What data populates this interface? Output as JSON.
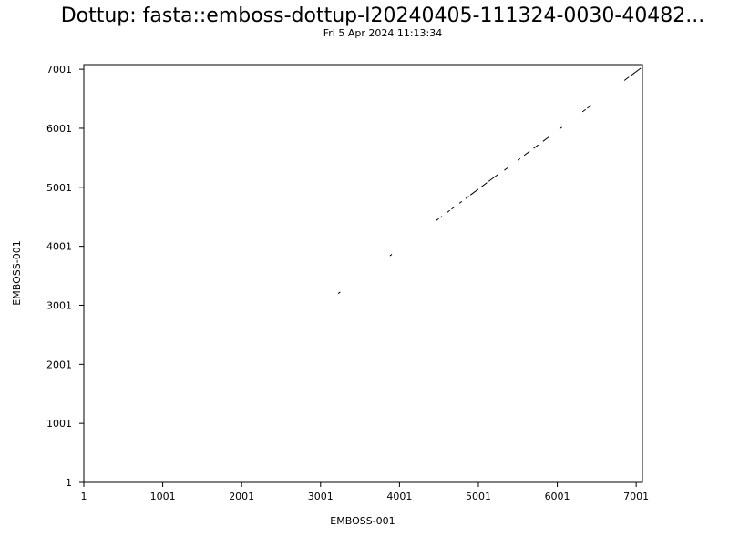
{
  "chart_data": {
    "type": "scatter",
    "title": "Dottup: fasta::emboss-dottup-I20240405-111324-0030-40482...",
    "subtitle": "Fri  5 Apr 2024 11:13:34",
    "xlabel": "EMBOSS-001",
    "ylabel": "EMBOSS-001",
    "xlim": [
      1,
      7080
    ],
    "ylim": [
      1,
      7080
    ],
    "xticks": [
      1,
      1001,
      2001,
      3001,
      4001,
      5001,
      6001,
      7001
    ],
    "yticks": [
      1,
      1001,
      2001,
      3001,
      4001,
      5001,
      6001,
      7001
    ],
    "grid": false,
    "segments": [
      {
        "x": [
          3225,
          3250
        ],
        "y": [
          3200,
          3225
        ]
      },
      {
        "x": [
          3880,
          3905
        ],
        "y": [
          3840,
          3865
        ]
      },
      {
        "x": [
          4460,
          4500
        ],
        "y": [
          4430,
          4470
        ]
      },
      {
        "x": [
          4520,
          4540
        ],
        "y": [
          4490,
          4510
        ]
      },
      {
        "x": [
          4600,
          4640
        ],
        "y": [
          4570,
          4610
        ]
      },
      {
        "x": [
          4660,
          4700
        ],
        "y": [
          4630,
          4670
        ]
      },
      {
        "x": [
          4760,
          4790
        ],
        "y": [
          4730,
          4760
        ]
      },
      {
        "x": [
          4840,
          4880
        ],
        "y": [
          4810,
          4850
        ]
      },
      {
        "x": [
          4900,
          5000
        ],
        "y": [
          4870,
          4970
        ]
      },
      {
        "x": [
          5040,
          5110
        ],
        "y": [
          5010,
          5080
        ]
      },
      {
        "x": [
          5130,
          5250
        ],
        "y": [
          5100,
          5220
        ]
      },
      {
        "x": [
          5330,
          5370
        ],
        "y": [
          5290,
          5330
        ]
      },
      {
        "x": [
          5500,
          5530
        ],
        "y": [
          5460,
          5490
        ]
      },
      {
        "x": [
          5580,
          5650
        ],
        "y": [
          5540,
          5610
        ]
      },
      {
        "x": [
          5700,
          5760
        ],
        "y": [
          5660,
          5720
        ]
      },
      {
        "x": [
          5820,
          5900
        ],
        "y": [
          5780,
          5860
        ]
      },
      {
        "x": [
          6030,
          6060
        ],
        "y": [
          5990,
          6020
        ]
      },
      {
        "x": [
          6320,
          6360
        ],
        "y": [
          6280,
          6320
        ]
      },
      {
        "x": [
          6380,
          6430
        ],
        "y": [
          6340,
          6390
        ]
      },
      {
        "x": [
          6850,
          6910
        ],
        "y": [
          6810,
          6870
        ]
      },
      {
        "x": [
          6930,
          7060
        ],
        "y": [
          6890,
          7020
        ]
      }
    ]
  }
}
